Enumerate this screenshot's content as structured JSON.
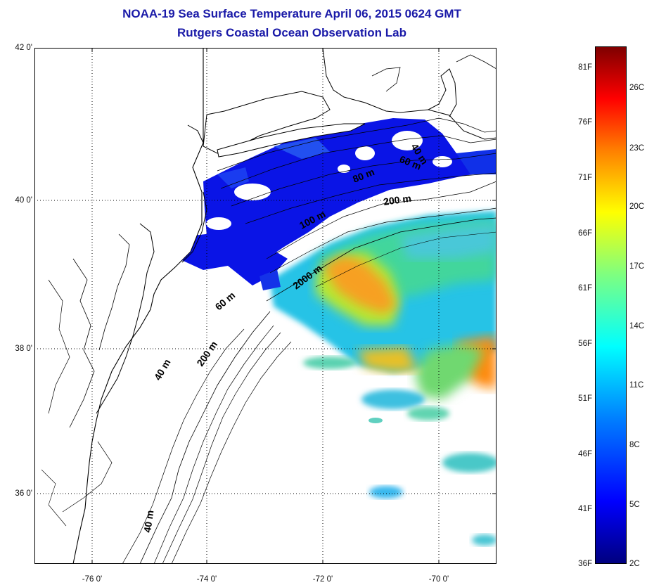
{
  "title_line1": "NOAA-19 Sea Surface Temperature April 06, 2015 0624 GMT",
  "title_line2": "Rutgers Coastal Ocean Observation Lab",
  "lat_labels": [
    "42 0'",
    "40 0'",
    "38 0'",
    "36 0'"
  ],
  "lon_labels": [
    "-76 0'",
    "-74 0'",
    "-72 0'",
    "-70 0'"
  ],
  "depth_labels": [
    "40 m",
    "60 m",
    "80 m",
    "100 m",
    "200 m",
    "2000 m",
    "60 m",
    "40 m",
    "200 m",
    "40 m"
  ],
  "colorbar": {
    "fahrenheit": [
      "81F",
      "76F",
      "71F",
      "66F",
      "61F",
      "56F",
      "51F",
      "46F",
      "41F",
      "36F"
    ],
    "celsius": [
      "26C",
      "23C",
      "20C",
      "17C",
      "14C",
      "11C",
      "8C",
      "5C",
      "2C"
    ]
  },
  "colors": {
    "title": "#1a1aa8",
    "cold": "#0a14e6",
    "warm": "#f08c1e"
  }
}
